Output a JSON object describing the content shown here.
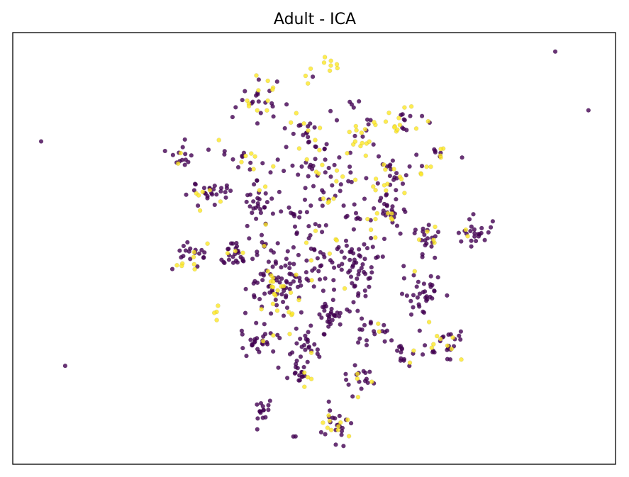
{
  "chart_data": {
    "type": "scatter",
    "title": "Adult - ICA",
    "xlabel": "",
    "ylabel": "",
    "xlim": [
      0,
      1
    ],
    "ylim": [
      0,
      1
    ],
    "axes_ticks": false,
    "grid": false,
    "legend": "none",
    "colors": {
      "class_0": "#440154",
      "class_1": "#fde725",
      "edge": "#000000"
    },
    "point_alpha": 0.8,
    "series": [
      {
        "class": 0,
        "color": "#440154",
        "points": []
      },
      {
        "class": 1,
        "color": "#fde725",
        "points": []
      }
    ],
    "clusters": [
      {
        "x": 0.522,
        "y": 0.926,
        "r": 0.018,
        "n": 8,
        "frac1": 0.9
      },
      {
        "x": 0.491,
        "y": 0.9,
        "r": 0.01,
        "n": 3,
        "frac1": 0.5
      },
      {
        "x": 0.411,
        "y": 0.85,
        "r": 0.025,
        "n": 28,
        "frac1": 0.35
      },
      {
        "x": 0.566,
        "y": 0.843,
        "r": 0.008,
        "n": 4,
        "frac1": 0.0
      },
      {
        "x": 0.363,
        "y": 0.818,
        "r": 0.006,
        "n": 2,
        "frac1": 0.0
      },
      {
        "x": 0.648,
        "y": 0.79,
        "r": 0.022,
        "n": 22,
        "frac1": 0.5
      },
      {
        "x": 0.576,
        "y": 0.75,
        "r": 0.025,
        "n": 25,
        "frac1": 0.4
      },
      {
        "x": 0.483,
        "y": 0.77,
        "r": 0.025,
        "n": 20,
        "frac1": 0.3
      },
      {
        "x": 0.713,
        "y": 0.727,
        "r": 0.015,
        "n": 10,
        "frac1": 0.7
      },
      {
        "x": 0.276,
        "y": 0.719,
        "r": 0.018,
        "n": 15,
        "frac1": 0.15
      },
      {
        "x": 0.39,
        "y": 0.7,
        "r": 0.025,
        "n": 22,
        "frac1": 0.2
      },
      {
        "x": 0.511,
        "y": 0.7,
        "r": 0.035,
        "n": 35,
        "frac1": 0.35
      },
      {
        "x": 0.686,
        "y": 0.68,
        "r": 0.01,
        "n": 5,
        "frac1": 0.9
      },
      {
        "x": 0.612,
        "y": 0.66,
        "r": 0.035,
        "n": 40,
        "frac1": 0.3
      },
      {
        "x": 0.323,
        "y": 0.625,
        "r": 0.022,
        "n": 30,
        "frac1": 0.25
      },
      {
        "x": 0.408,
        "y": 0.595,
        "r": 0.028,
        "n": 30,
        "frac1": 0.25
      },
      {
        "x": 0.506,
        "y": 0.52,
        "r": 0.08,
        "n": 120,
        "frac1": 0.07
      },
      {
        "x": 0.627,
        "y": 0.58,
        "r": 0.025,
        "n": 25,
        "frac1": 0.2
      },
      {
        "x": 0.758,
        "y": 0.54,
        "r": 0.02,
        "n": 25,
        "frac1": 0.05
      },
      {
        "x": 0.683,
        "y": 0.52,
        "r": 0.02,
        "n": 25,
        "frac1": 0.3
      },
      {
        "x": 0.298,
        "y": 0.48,
        "r": 0.02,
        "n": 25,
        "frac1": 0.35
      },
      {
        "x": 0.368,
        "y": 0.49,
        "r": 0.018,
        "n": 25,
        "frac1": 0.1
      },
      {
        "x": 0.44,
        "y": 0.445,
        "r": 0.05,
        "n": 55,
        "frac1": 0.2
      },
      {
        "x": 0.438,
        "y": 0.4,
        "r": 0.028,
        "n": 45,
        "frac1": 0.25
      },
      {
        "x": 0.566,
        "y": 0.45,
        "r": 0.03,
        "n": 35,
        "frac1": 0.05
      },
      {
        "x": 0.678,
        "y": 0.39,
        "r": 0.025,
        "n": 35,
        "frac1": 0.05
      },
      {
        "x": 0.531,
        "y": 0.345,
        "r": 0.018,
        "n": 25,
        "frac1": 0.0
      },
      {
        "x": 0.336,
        "y": 0.35,
        "r": 0.008,
        "n": 4,
        "frac1": 0.5
      },
      {
        "x": 0.596,
        "y": 0.32,
        "r": 0.02,
        "n": 20,
        "frac1": 0.15
      },
      {
        "x": 0.403,
        "y": 0.28,
        "r": 0.018,
        "n": 25,
        "frac1": 0.05
      },
      {
        "x": 0.717,
        "y": 0.28,
        "r": 0.022,
        "n": 30,
        "frac1": 0.25
      },
      {
        "x": 0.486,
        "y": 0.26,
        "r": 0.025,
        "n": 25,
        "frac1": 0.05
      },
      {
        "x": 0.652,
        "y": 0.25,
        "r": 0.015,
        "n": 15,
        "frac1": 0.1
      },
      {
        "x": 0.478,
        "y": 0.21,
        "r": 0.015,
        "n": 18,
        "frac1": 0.1
      },
      {
        "x": 0.576,
        "y": 0.195,
        "r": 0.018,
        "n": 20,
        "frac1": 0.2
      },
      {
        "x": 0.42,
        "y": 0.125,
        "r": 0.015,
        "n": 15,
        "frac1": 0.05
      },
      {
        "x": 0.533,
        "y": 0.09,
        "r": 0.02,
        "n": 30,
        "frac1": 0.35
      },
      {
        "x": 0.472,
        "y": 0.06,
        "r": 0.006,
        "n": 2,
        "frac1": 0.0
      }
    ],
    "outliers": [
      {
        "x": 0.9,
        "y": 0.956,
        "c": 0
      },
      {
        "x": 0.955,
        "y": 0.82,
        "c": 0
      },
      {
        "x": 0.047,
        "y": 0.748,
        "c": 0
      },
      {
        "x": 0.087,
        "y": 0.228,
        "c": 0
      }
    ]
  }
}
